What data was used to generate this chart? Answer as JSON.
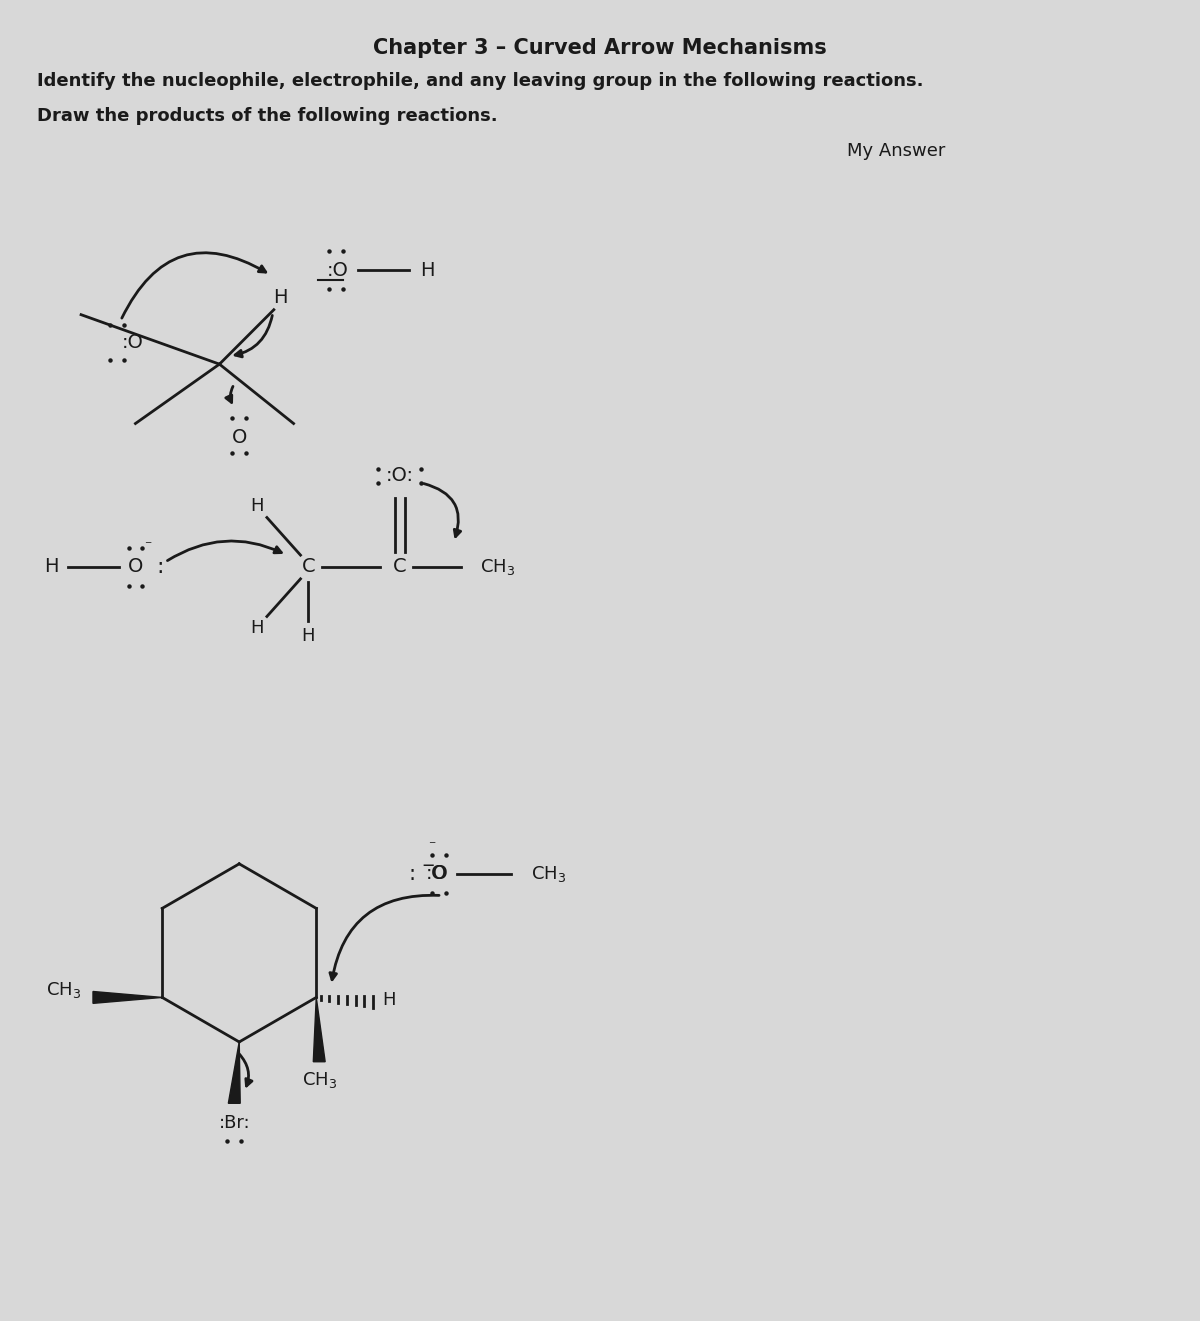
{
  "title": "Chapter 3 – Curved Arrow Mechanisms",
  "subtitle1": "Identify the nucleophile, electrophile, and any leaving group in the following reactions.",
  "subtitle2": "Draw the products of the following reactions.",
  "my_answer": "My Answer",
  "bg_color": "#d8d8d8",
  "text_color": "#1a1a1a",
  "title_fontsize": 15,
  "body_fontsize": 13,
  "label_fontsize": 13
}
